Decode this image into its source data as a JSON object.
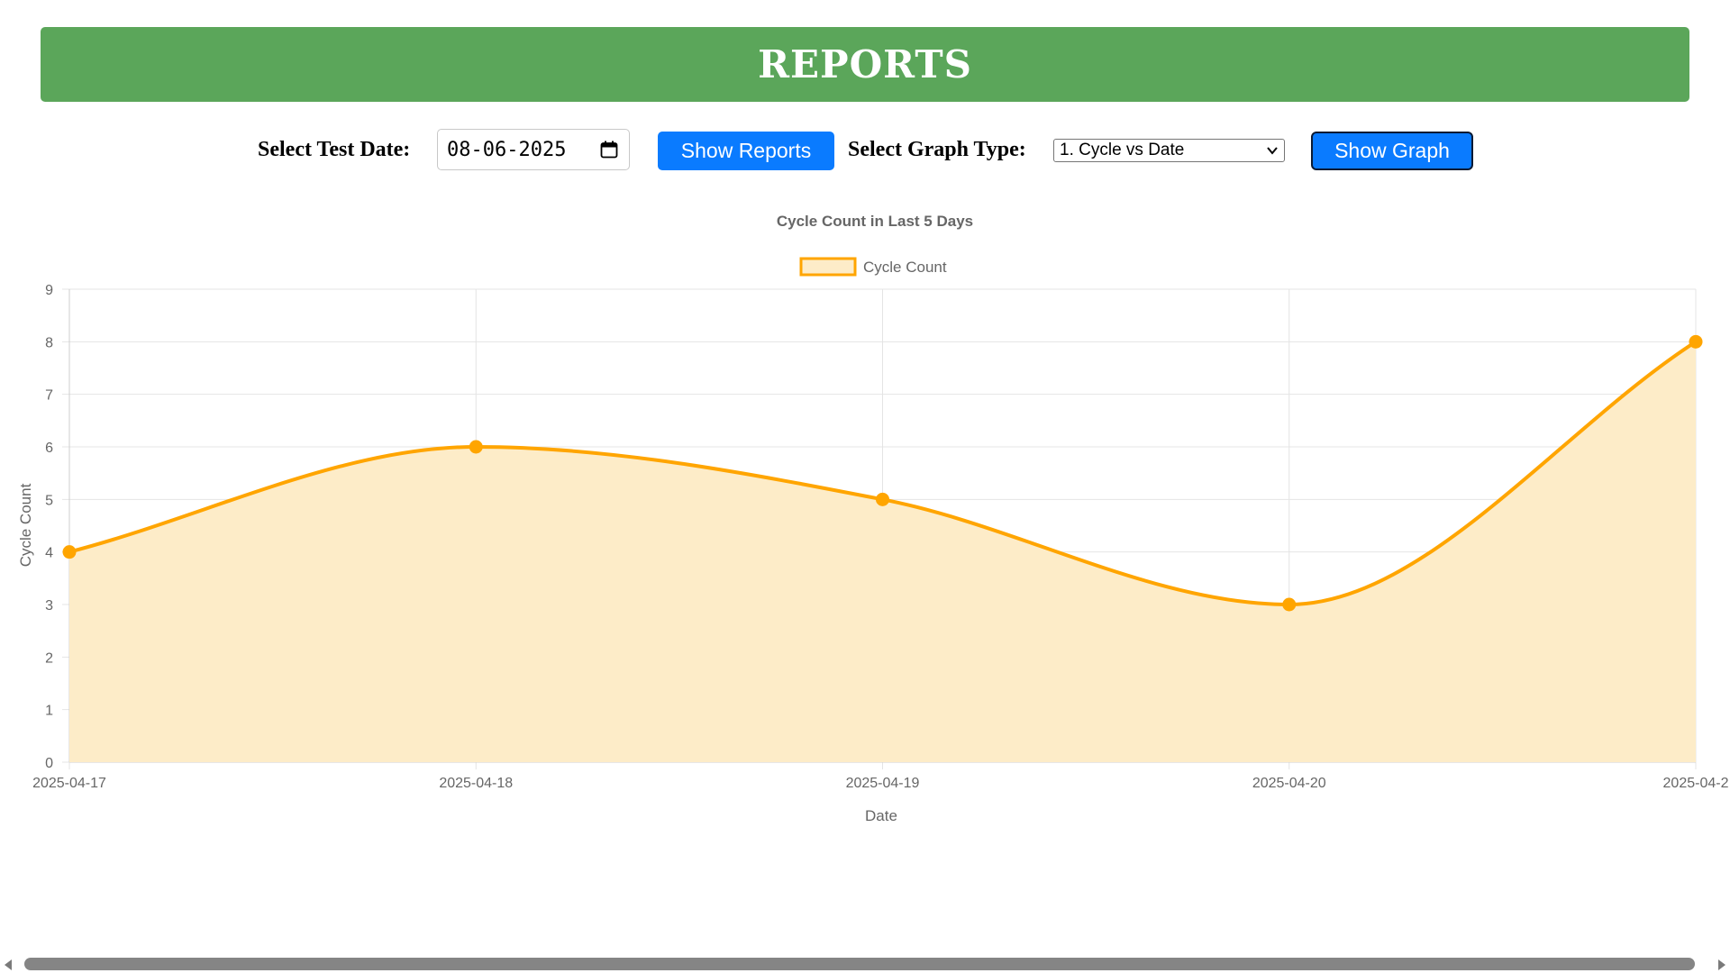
{
  "header": {
    "title": "REPORTS",
    "color": "#5ba65a"
  },
  "controls": {
    "test_date_label": "Select Test Date:",
    "test_date_value": "08-06-2025",
    "show_reports_label": "Show Reports",
    "graph_type_label": "Select Graph Type:",
    "graph_type_selected": "1. Cycle vs Date",
    "show_graph_label": "Show Graph",
    "button_color": "#0a7bff"
  },
  "icons": {
    "date_picker": "calendar-icon",
    "select": "chevron-down-icon",
    "scroll_left": "arrow-left-icon",
    "scroll_right": "arrow-right-icon"
  },
  "chart_data": {
    "type": "line",
    "title": "Cycle Count in Last 5 Days",
    "legend": "top-center",
    "categories": [
      "2025-04-17",
      "2025-04-18",
      "2025-04-19",
      "2025-04-20",
      "2025-04-2"
    ],
    "series": [
      {
        "name": "Cycle Count",
        "values": [
          4,
          6,
          5,
          3,
          8
        ],
        "color": "#ffa500",
        "fill": "#fdecc8",
        "filled": true,
        "smooth": true
      }
    ],
    "xlabel": "Date",
    "ylabel": "Cycle Count",
    "ylim": [
      0,
      9
    ],
    "yticks": [
      0,
      1,
      2,
      3,
      4,
      5,
      6,
      7,
      8,
      9
    ],
    "grid": true
  }
}
